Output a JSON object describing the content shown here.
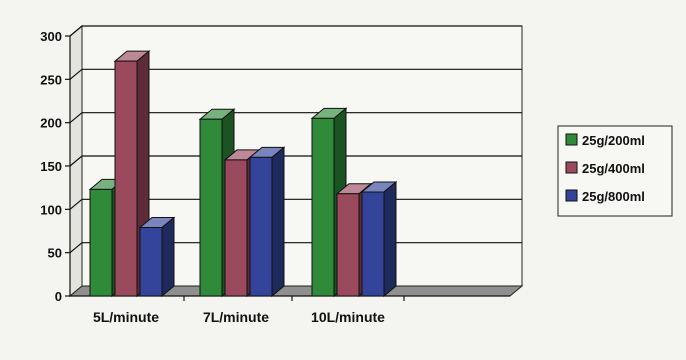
{
  "chart_data": {
    "type": "bar",
    "categories": [
      "5L/minute",
      "7L/minute",
      "10L/minute"
    ],
    "series": [
      {
        "name": "25g/200ml",
        "values": [
          123,
          204,
          205
        ],
        "color": "#2f8a3a"
      },
      {
        "name": "25g/400ml",
        "values": [
          271,
          157,
          118
        ],
        "color": "#9b4a5e"
      },
      {
        "name": "25g/800ml",
        "values": [
          79,
          160,
          120
        ],
        "color": "#34449a"
      }
    ],
    "y_ticks": [
      "0",
      "50",
      "100",
      "150",
      "200",
      "250",
      "300"
    ],
    "ylim": [
      0,
      300
    ],
    "grid": true,
    "legend": "right",
    "three_d": true
  }
}
